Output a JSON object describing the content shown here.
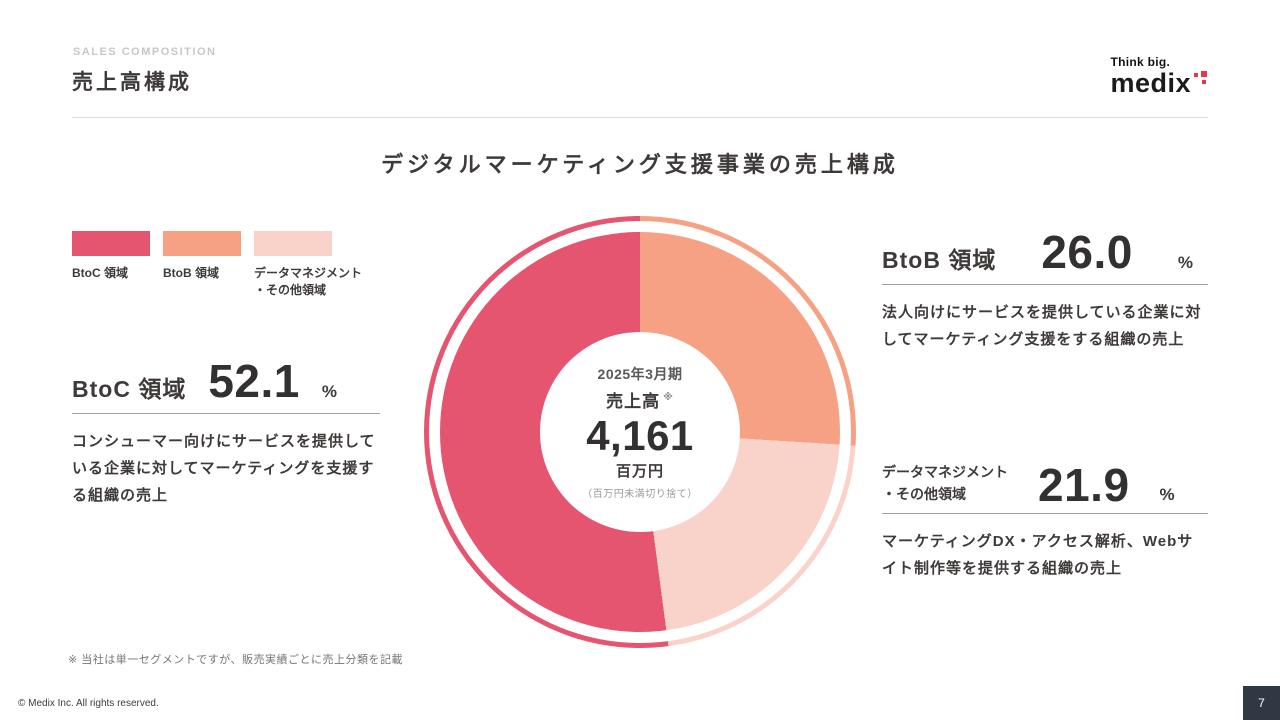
{
  "header": {
    "eyebrow": "SALES COMPOSITION",
    "title": "売上高構成",
    "logo": {
      "tagline": "Think big.",
      "brand": "medix"
    }
  },
  "main": {
    "heading": "デジタルマーケティング支援事業の売上構成"
  },
  "chart_data": {
    "type": "pie",
    "donut": true,
    "title": "デジタルマーケティング支援事業の売上構成",
    "unit": "%",
    "segments_clockwise_from_top": [
      {
        "name": "BtoB 領域",
        "value": 26.0,
        "color": "#f6a184"
      },
      {
        "name": "データマネジメント・その他領域",
        "value": 21.9,
        "color": "#f9d3c9"
      },
      {
        "name": "BtoC 領域",
        "value": 52.1,
        "color": "#e55570"
      }
    ],
    "center_label": {
      "period": "2025年3月期",
      "label": "売上高",
      "note_mark": "※",
      "value": "4,161",
      "unit": "百万円",
      "note": "（百万円未満切り捨て）"
    }
  },
  "legend": {
    "items": [
      {
        "label": "BtoC 領域",
        "color": "#e55570"
      },
      {
        "label": "BtoB 領域",
        "color": "#f6a184"
      },
      {
        "label_line1": "データマネジメント",
        "label_line2": "・その他領域",
        "color": "#f9d3c9"
      }
    ]
  },
  "stats": {
    "btoc": {
      "label": "BtoC 領域",
      "value": "52.1",
      "unit": "%",
      "description": "コンシューマー向けにサービスを提供している企業に対してマーケティングを支援する組織の売上"
    },
    "btob": {
      "label": "BtoB 領域",
      "value": "26.0",
      "unit": "%",
      "description": "法人向けにサービスを提供している企業に対してマーケティング支援をする組織の売上"
    },
    "data_mgmt": {
      "label_line1": "データマネジメント",
      "label_line2": "・その他領域",
      "value": "21.9",
      "unit": "%",
      "description": "マーケティングDX・アクセス解析、Webサイト制作等を提供する組織の売上"
    }
  },
  "footnote": "※ 当社は単一セグメントですが、販売実績ごとに売上分類を記載",
  "footer": {
    "copyright": "© Medix Inc. All rights reserved.",
    "page_number": "7"
  }
}
